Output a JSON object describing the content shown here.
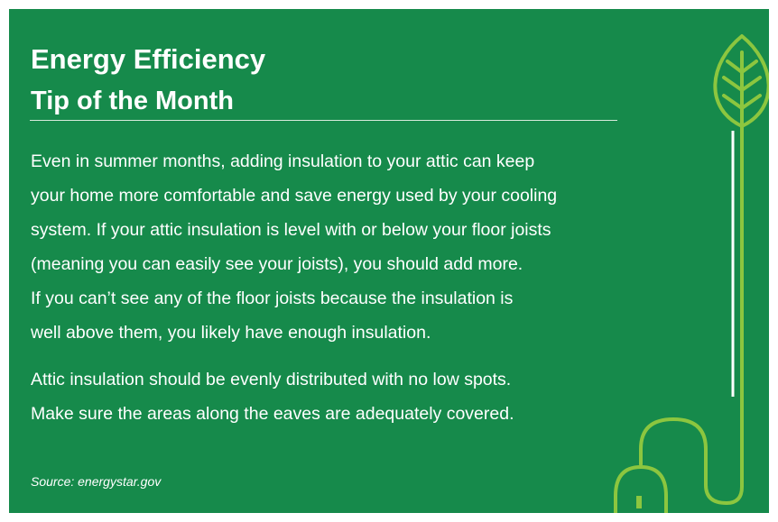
{
  "header": {
    "title": "Energy Efficiency",
    "subtitle": "Tip of the Month"
  },
  "body": {
    "paragraphs": [
      {
        "lines": [
          "Even in summer months, adding insulation to your attic can keep",
          "your home more comfortable and save energy used by your cooling",
          "system. If your attic insulation is level with or below your floor joists",
          "(meaning you can easily see your joists), you should add more.",
          "If you can’t see any of the floor joists because the insulation is",
          "well above them, you likely have enough insulation."
        ]
      },
      {
        "lines": [
          "Attic insulation should be evenly distributed with no low spots.",
          "Make sure the areas along the eaves are adequately covered."
        ]
      }
    ]
  },
  "footer": {
    "source": "Source: energystar.gov"
  }
}
